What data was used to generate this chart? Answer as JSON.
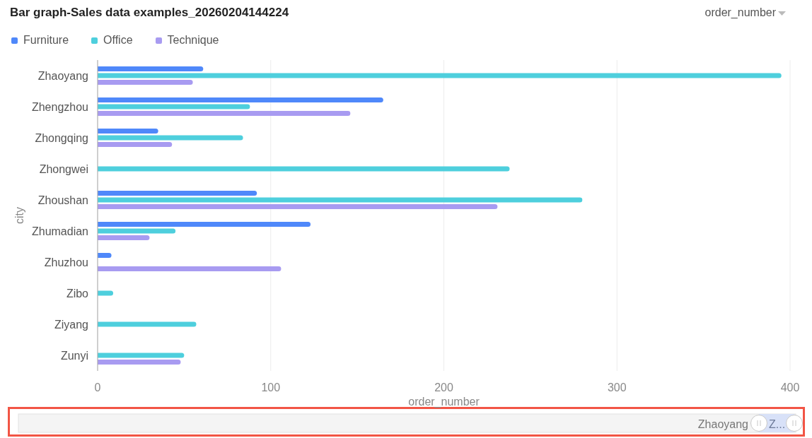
{
  "chart_data": {
    "type": "bar",
    "orientation": "horizontal",
    "title": "Bar graph-Sales data examples_20260204144224",
    "xlabel": "order_number",
    "ylabel": "city",
    "categories": [
      "Zhaoyang",
      "Zhengzhou",
      "Zhongqing",
      "Zhongwei",
      "Zhoushan",
      "Zhumadian",
      "Zhuzhou",
      "Zibo",
      "Ziyang",
      "Zunyi"
    ],
    "series": [
      {
        "name": "Furniture",
        "color": "#4f88fa",
        "values": [
          61,
          165,
          35,
          null,
          92,
          123,
          8,
          null,
          null,
          null
        ]
      },
      {
        "name": "Office",
        "color": "#4ecfdd",
        "values": [
          395,
          88,
          84,
          238,
          280,
          45,
          null,
          9,
          57,
          50
        ]
      },
      {
        "name": "Technique",
        "color": "#a89bf1",
        "values": [
          55,
          146,
          43,
          null,
          231,
          30,
          106,
          null,
          null,
          48
        ]
      }
    ],
    "xlim": [
      0,
      400
    ],
    "xticks": [
      0,
      100,
      200,
      300,
      400
    ],
    "grid": "x",
    "legend": "top left",
    "annotations": [
      "order_number",
      "Zhaoyang",
      "Z..."
    ]
  }
}
